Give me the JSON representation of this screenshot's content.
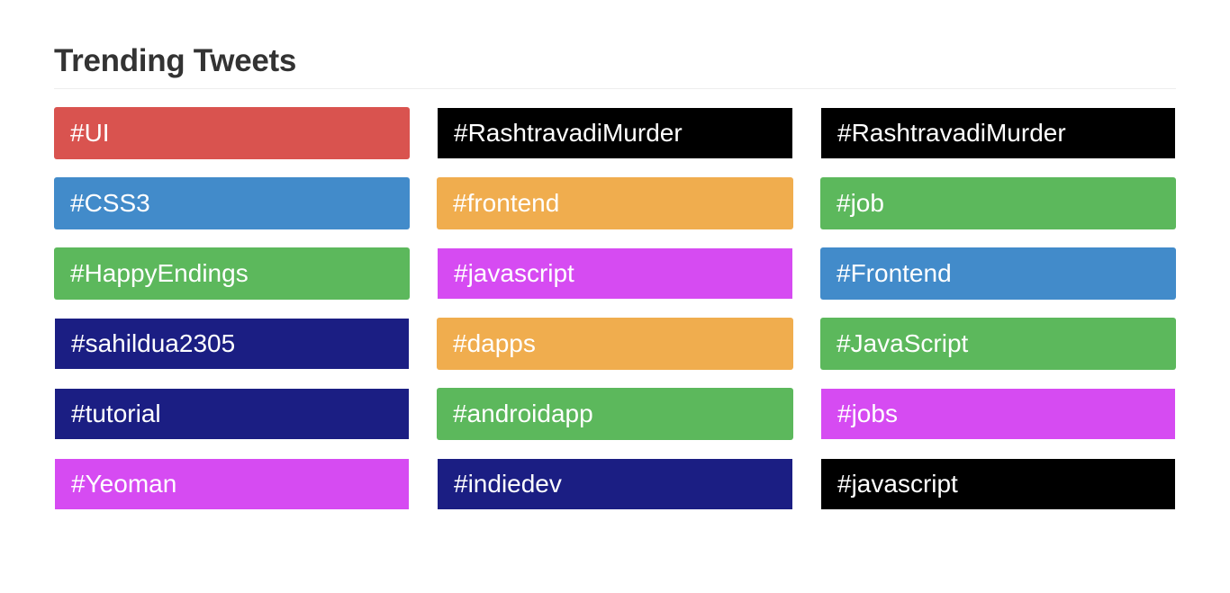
{
  "header": {
    "title": "Trending Tweets"
  },
  "colors": {
    "red": "#d9534f",
    "blue": "#428bca",
    "green": "#5cb85c",
    "orange": "#f0ad4e",
    "purple": "#d64bf2",
    "navy": "#1b1e83",
    "black": "#000000"
  },
  "tags": [
    {
      "label": "#UI",
      "color": "#d9534f",
      "style": "rounded"
    },
    {
      "label": "#RashtravadiMurder",
      "color": "#000000",
      "style": "flat"
    },
    {
      "label": "#RashtravadiMurder",
      "color": "#000000",
      "style": "flat"
    },
    {
      "label": "#CSS3",
      "color": "#428bca",
      "style": "rounded"
    },
    {
      "label": "#frontend",
      "color": "#f0ad4e",
      "style": "rounded"
    },
    {
      "label": "#job",
      "color": "#5cb85c",
      "style": "rounded"
    },
    {
      "label": "#HappyEndings",
      "color": "#5cb85c",
      "style": "rounded"
    },
    {
      "label": "#javascript",
      "color": "#d64bf2",
      "style": "flat"
    },
    {
      "label": "#Frontend",
      "color": "#428bca",
      "style": "rounded"
    },
    {
      "label": "#sahildua2305",
      "color": "#1b1e83",
      "style": "flat"
    },
    {
      "label": "#dapps",
      "color": "#f0ad4e",
      "style": "rounded"
    },
    {
      "label": "#JavaScript",
      "color": "#5cb85c",
      "style": "rounded"
    },
    {
      "label": "#tutorial",
      "color": "#1b1e83",
      "style": "flat"
    },
    {
      "label": "#androidapp",
      "color": "#5cb85c",
      "style": "rounded"
    },
    {
      "label": "#jobs",
      "color": "#d64bf2",
      "style": "flat"
    },
    {
      "label": "#Yeoman",
      "color": "#d64bf2",
      "style": "flat"
    },
    {
      "label": "#indiedev",
      "color": "#1b1e83",
      "style": "flat"
    },
    {
      "label": "#javascript",
      "color": "#000000",
      "style": "flat"
    }
  ]
}
